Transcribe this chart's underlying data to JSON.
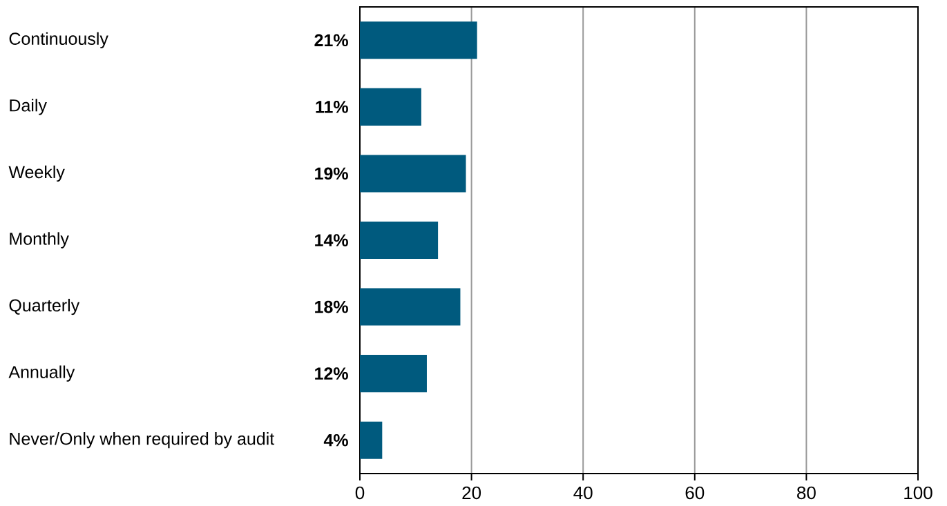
{
  "chart_data": {
    "type": "bar",
    "orientation": "horizontal",
    "categories": [
      "Continuously",
      "Daily",
      "Weekly",
      "Monthly",
      "Quarterly",
      "Annually",
      "Never/Only when required by audit"
    ],
    "values": [
      21,
      11,
      19,
      14,
      18,
      12,
      4
    ],
    "value_labels": [
      "**21%**",
      "**11%**",
      "**19%**",
      "**14%**",
      "**18%**",
      "**12%**",
      "**4%**"
    ],
    "color": "#005a7e",
    "xlim": [
      0,
      100
    ],
    "xticks": [
      0,
      20,
      40,
      60,
      80,
      100
    ],
    "grid": "x"
  }
}
